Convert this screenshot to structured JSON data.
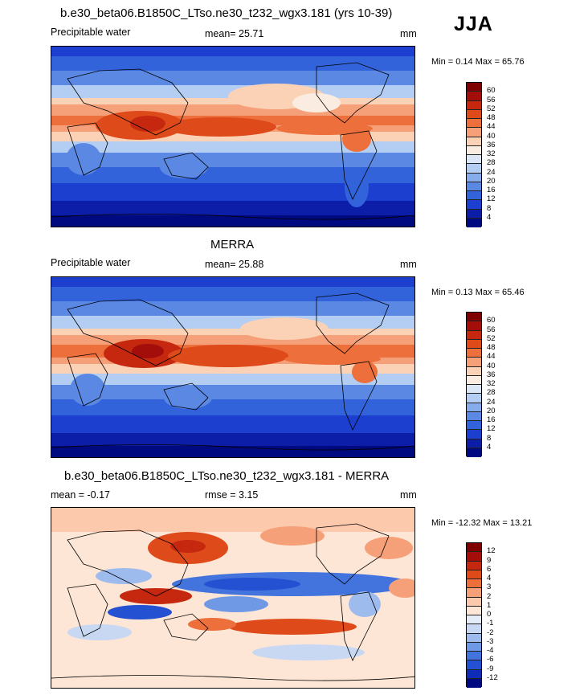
{
  "season": "JJA",
  "panels": [
    {
      "title": "b.e30_beta06.B1850C_LTso.ne30_t232_wgx3.181 (yrs 10-39)",
      "left_label": "Precipitable water",
      "mean_label": "mean=  25.71",
      "units": "mm",
      "minmax": "Min =   0.14 Max =  65.76",
      "levels": [
        "60",
        "56",
        "52",
        "48",
        "44",
        "40",
        "36",
        "32",
        "28",
        "24",
        "20",
        "16",
        "12",
        "8",
        "4"
      ]
    },
    {
      "title": "MERRA",
      "left_label": "Precipitable water",
      "mean_label": "mean=  25.88",
      "units": "mm",
      "minmax": "Min =   0.13 Max =  65.46",
      "levels": [
        "60",
        "56",
        "52",
        "48",
        "44",
        "40",
        "36",
        "32",
        "28",
        "24",
        "20",
        "16",
        "12",
        "8",
        "4"
      ]
    },
    {
      "title": "b.e30_beta06.B1850C_LTso.ne30_t232_wgx3.181 - MERRA",
      "left_label": "mean =  -0.17",
      "mean_label": "rmse =   3.15",
      "units": "mm",
      "minmax": "Min = -12.32 Max =  13.21",
      "levels": [
        "12",
        "9",
        "6",
        "4",
        "3",
        "2",
        "1",
        "0",
        "-1",
        "-2",
        "-3",
        "-4",
        "-6",
        "-9",
        "-12"
      ]
    }
  ],
  "colors": {
    "seq_scale": [
      "#7f0000",
      "#a30e0a",
      "#c6280f",
      "#de4a1a",
      "#ec6f3c",
      "#f6a07a",
      "#fcd2b6",
      "#fbece1",
      "#dbe7f7",
      "#b4cdf2",
      "#86acec",
      "#5a88e3",
      "#3363db",
      "#1c3fcf",
      "#0c1ea8",
      "#000a80"
    ],
    "div_scale": [
      "#7f0000",
      "#a30e0a",
      "#c6280f",
      "#de4a1a",
      "#ec6f3c",
      "#f6a07a",
      "#fcc9ac",
      "#fde6d6",
      "#e6ecf7",
      "#c8d8f3",
      "#9dbbed",
      "#6f98e5",
      "#4373dc",
      "#2450d2",
      "#0e2cb7",
      "#000a80"
    ]
  }
}
